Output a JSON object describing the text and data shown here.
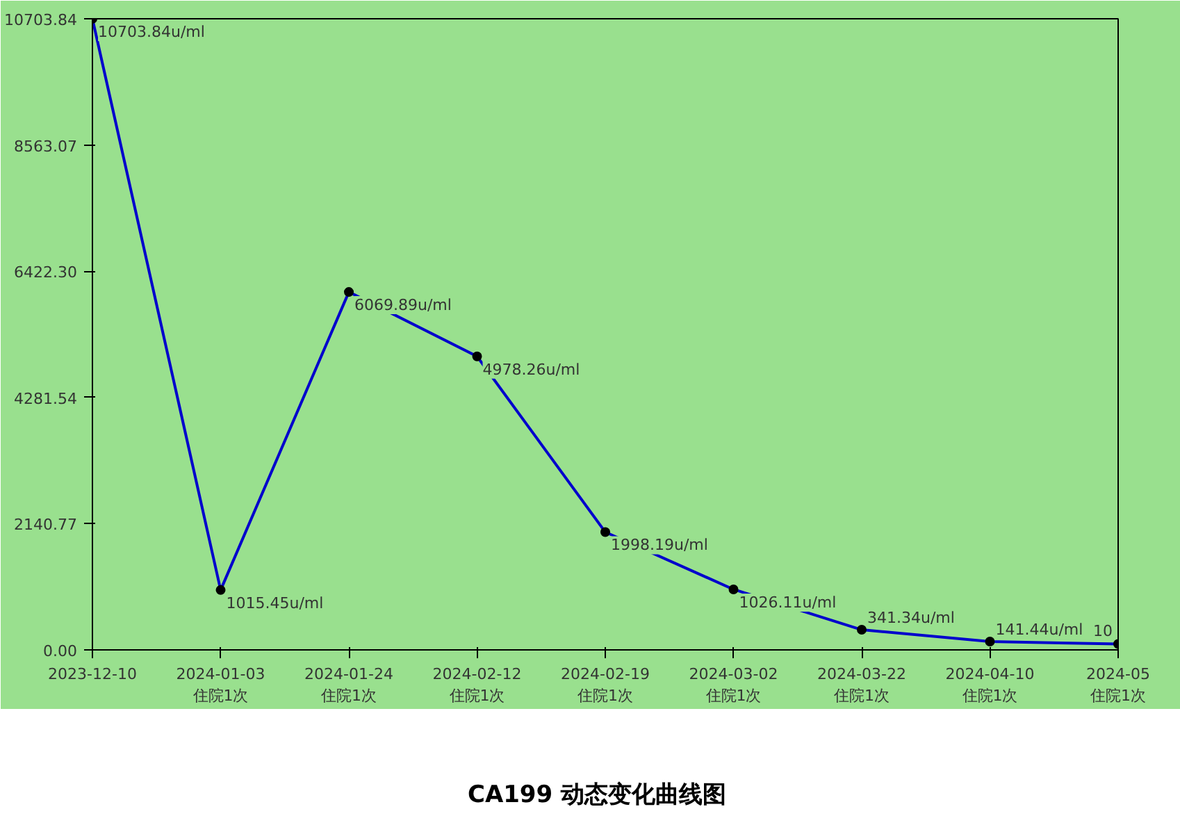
{
  "chart_data": {
    "type": "line",
    "title": "CA199 动态变化曲线图",
    "categories": [
      "2023-12-10",
      "2024-01-03\n住院1次",
      "2024-01-24\n住院1次",
      "2024-02-12\n住院1次",
      "2024-02-19\n住院1次",
      "2024-03-02\n住院1次",
      "2024-03-22\n住院1次",
      "2024-04-10\n住院1次",
      "2024-05\n住院1次"
    ],
    "series": [
      {
        "color": "#0000cc",
        "values": [
          10703.84,
          1015.45,
          6069.89,
          4978.26,
          1998.19,
          1026.11,
          341.34,
          141.44,
          100
        ]
      }
    ],
    "value_labels": [
      "10703.84u/ml",
      "1015.45u/ml",
      "6069.89u/ml",
      "4978.26u/ml",
      "1998.19u/ml",
      "1026.11u/ml",
      "341.34u/ml",
      "141.44u/ml",
      "10"
    ],
    "ylim": [
      0,
      10703.84
    ],
    "yticks": [
      {
        "value": 0,
        "label": "0.00"
      },
      {
        "value": 2140.77,
        "label": "2140.77"
      },
      {
        "value": 4281.54,
        "label": "4281.54"
      },
      {
        "value": 6422.3,
        "label": "6422.30"
      },
      {
        "value": 8563.07,
        "label": "8563.07"
      },
      {
        "value": 10703.84,
        "label": "10703.84"
      }
    ],
    "grid": false,
    "marker": "circle",
    "line_style": "solid"
  }
}
